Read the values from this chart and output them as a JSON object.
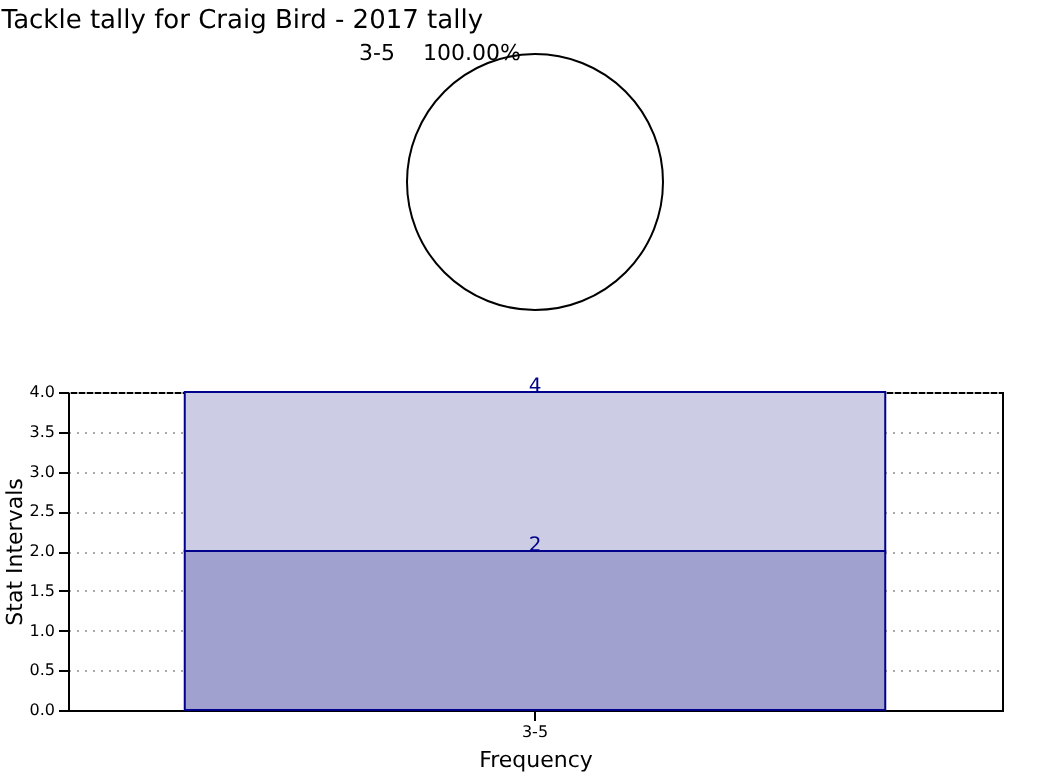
{
  "chart_data": [
    {
      "type": "pie",
      "title": "Tackle tally for Craig Bird - 2017 tally",
      "categories": [
        "3-5"
      ],
      "values": [
        100
      ],
      "colors": [
        "#ffffff"
      ],
      "value_labels": [
        "100.00%"
      ]
    },
    {
      "type": "bar",
      "stacked": true,
      "categories": [
        "3-5"
      ],
      "xlabel": "Frequency",
      "ylabel": "Stat Intervals",
      "ylim": [
        0,
        4
      ],
      "yticks": [
        {
          "value": 0,
          "label": "0.0"
        },
        {
          "value": 0.5,
          "label": "0.5"
        },
        {
          "value": 1,
          "label": "1.0"
        },
        {
          "value": 1.5,
          "label": "1.5"
        },
        {
          "value": 2,
          "label": "2.0"
        },
        {
          "value": 2.5,
          "label": "2.5"
        },
        {
          "value": 3,
          "label": "3.0"
        },
        {
          "value": 3.5,
          "label": "3.5"
        },
        {
          "value": 4,
          "label": "4.0"
        }
      ],
      "grid": true,
      "series": [
        {
          "color": "#a1a1d0",
          "values": [
            2
          ],
          "value_labels": [
            "2"
          ]
        },
        {
          "color": "#cccce5",
          "values": [
            2
          ]
        }
      ],
      "totals": [
        "4"
      ]
    }
  ]
}
